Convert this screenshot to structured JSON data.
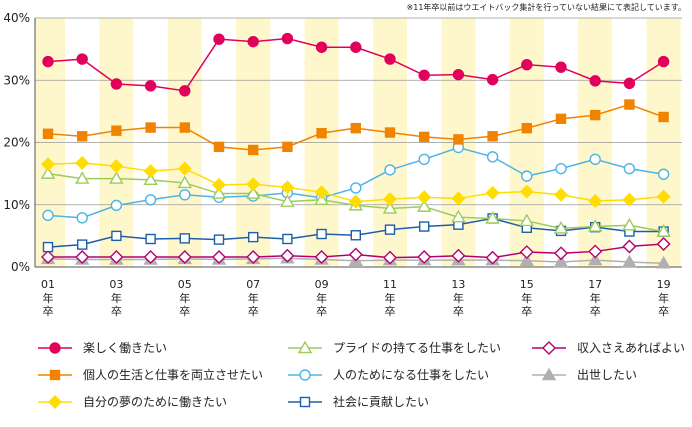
{
  "note": "※11年卒以前はウエイトバック集計を行っていない結果にて表記しています。",
  "chart_data": {
    "type": "line",
    "title": "",
    "xlabel": "",
    "ylabel": "",
    "ylim": [
      0,
      40
    ],
    "yticks": [
      0,
      10,
      20,
      30,
      40
    ],
    "ytick_labels": [
      "0%",
      "10%",
      "20%",
      "30%",
      "40%"
    ],
    "x_count": 19,
    "x_label_indices": [
      0,
      2,
      4,
      6,
      8,
      10,
      12,
      14,
      16,
      18
    ],
    "x_labels": [
      {
        "num": "01",
        "a": "年",
        "b": "卒"
      },
      {
        "num": "03",
        "a": "年",
        "b": "卒"
      },
      {
        "num": "05",
        "a": "年",
        "b": "卒"
      },
      {
        "num": "07",
        "a": "年",
        "b": "卒"
      },
      {
        "num": "09",
        "a": "年",
        "b": "卒"
      },
      {
        "num": "11",
        "a": "年",
        "b": "卒"
      },
      {
        "num": "13",
        "a": "年",
        "b": "卒"
      },
      {
        "num": "15",
        "a": "年",
        "b": "卒"
      },
      {
        "num": "17",
        "a": "年",
        "b": "卒"
      },
      {
        "num": "19",
        "a": "年",
        "b": "卒"
      }
    ],
    "series": [
      {
        "name": "楽しく働きたい",
        "color": "#e2005a",
        "marker": "circle-filled",
        "values": [
          33.0,
          33.4,
          29.4,
          29.1,
          28.3,
          36.6,
          36.2,
          36.7,
          35.3,
          35.3,
          33.4,
          30.8,
          30.9,
          30.1,
          32.5,
          32.1,
          29.9,
          29.5,
          33.0
        ]
      },
      {
        "name": "個人の生活と仕事を両立させたい",
        "color": "#f08300",
        "marker": "square-filled",
        "values": [
          21.4,
          21.0,
          21.9,
          22.4,
          22.4,
          19.3,
          18.8,
          19.3,
          21.5,
          22.3,
          21.6,
          20.9,
          20.5,
          21.0,
          22.3,
          23.8,
          24.4,
          26.1,
          24.1
        ]
      },
      {
        "name": "自分の夢のために働きたい",
        "color": "#ffdd00",
        "marker": "diamond-filled",
        "values": [
          16.5,
          16.7,
          16.2,
          15.4,
          15.8,
          13.2,
          13.3,
          12.8,
          12.0,
          10.5,
          10.9,
          11.2,
          11.0,
          11.9,
          12.1,
          11.6,
          10.6,
          10.8,
          11.3
        ]
      },
      {
        "name": "プライドの持てる仕事をしたい",
        "color": "#9ccc5a",
        "marker": "triangle-open",
        "values": [
          15.0,
          14.2,
          14.2,
          14.0,
          13.5,
          11.8,
          11.8,
          10.5,
          10.8,
          9.9,
          9.4,
          9.7,
          8.0,
          7.8,
          7.4,
          6.2,
          6.5,
          6.7,
          5.7
        ]
      },
      {
        "name": "人のためになる仕事をしたい",
        "color": "#4fb3e6",
        "marker": "circle-open",
        "values": [
          8.3,
          7.9,
          9.9,
          10.8,
          11.6,
          11.2,
          11.4,
          11.9,
          11.1,
          12.7,
          15.6,
          17.3,
          19.2,
          17.7,
          14.6,
          15.8,
          17.3,
          15.8,
          14.9
        ]
      },
      {
        "name": "社会に貢献したい",
        "color": "#1d5fa6",
        "marker": "square-open",
        "values": [
          3.2,
          3.6,
          5.0,
          4.5,
          4.6,
          4.4,
          4.8,
          4.5,
          5.3,
          5.1,
          6.0,
          6.5,
          6.8,
          7.8,
          6.3,
          5.8,
          6.4,
          5.7,
          5.7
        ]
      },
      {
        "name": "収入さえあればよい",
        "color": "#b3006e",
        "marker": "diamond-open",
        "values": [
          1.6,
          1.6,
          1.6,
          1.6,
          1.6,
          1.6,
          1.6,
          1.8,
          1.6,
          2.0,
          1.5,
          1.6,
          1.8,
          1.5,
          2.4,
          2.2,
          2.5,
          3.3,
          3.7
        ]
      },
      {
        "name": "出世したい",
        "color": "#b0b0b0",
        "marker": "triangle-filled",
        "values": [
          1.3,
          1.2,
          1.2,
          1.2,
          1.3,
          1.2,
          1.3,
          1.4,
          1.2,
          1.0,
          1.1,
          1.1,
          1.1,
          1.1,
          1.0,
          0.8,
          1.1,
          0.8,
          0.6
        ]
      }
    ],
    "legend_position": "bottom",
    "legend_layout": [
      [
        0,
        1,
        2
      ],
      [
        3,
        4,
        5
      ],
      [
        6,
        7
      ]
    ],
    "band_colors": [
      "#fff7cc",
      "#ffffff"
    ],
    "grid": true
  }
}
